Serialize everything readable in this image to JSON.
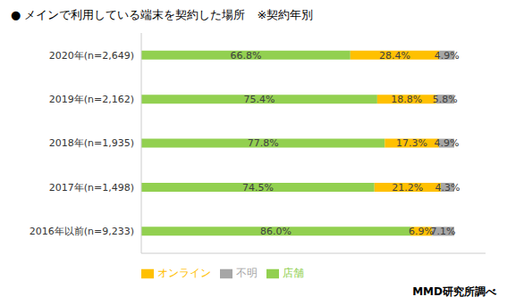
{
  "chart_data": {
    "type": "bar",
    "title": "● メインで利用している端末を契約した場所　※契約年別",
    "orientation": "horizontal",
    "stacked": true,
    "categories": [
      "2020年(n=2,649)",
      "2019年(n=2,162)",
      "2018年(n=1,935)",
      "2017年(n=1,498)",
      "2016年以前(n=9,233)"
    ],
    "series": [
      {
        "name": "店舗",
        "color": "#92d050",
        "values": [
          66.8,
          75.4,
          77.8,
          74.5,
          86.0
        ],
        "value_labels": [
          "66.8%",
          "75.4%",
          "77.8%",
          "74.5%",
          "86.0%"
        ]
      },
      {
        "name": "オンライン",
        "color": "#ffc000",
        "values": [
          28.4,
          18.8,
          17.3,
          21.2,
          6.9
        ],
        "value_labels": [
          "28.4%",
          "18.8%",
          "17.3%",
          "21.2%",
          "6.9%"
        ]
      },
      {
        "name": "不明",
        "color": "#a6a6a6",
        "values": [
          4.9,
          5.8,
          4.9,
          4.3,
          7.1
        ],
        "value_labels": [
          "4.9%",
          "5.8%",
          "4.9%",
          "4.3%",
          "7.1%"
        ]
      }
    ],
    "xlim": [
      0,
      110
    ],
    "data_labels": true,
    "tick_labels": "y",
    "legend": "bottom",
    "grid": false,
    "annotations": [
      "MMD研究所調べ"
    ]
  }
}
